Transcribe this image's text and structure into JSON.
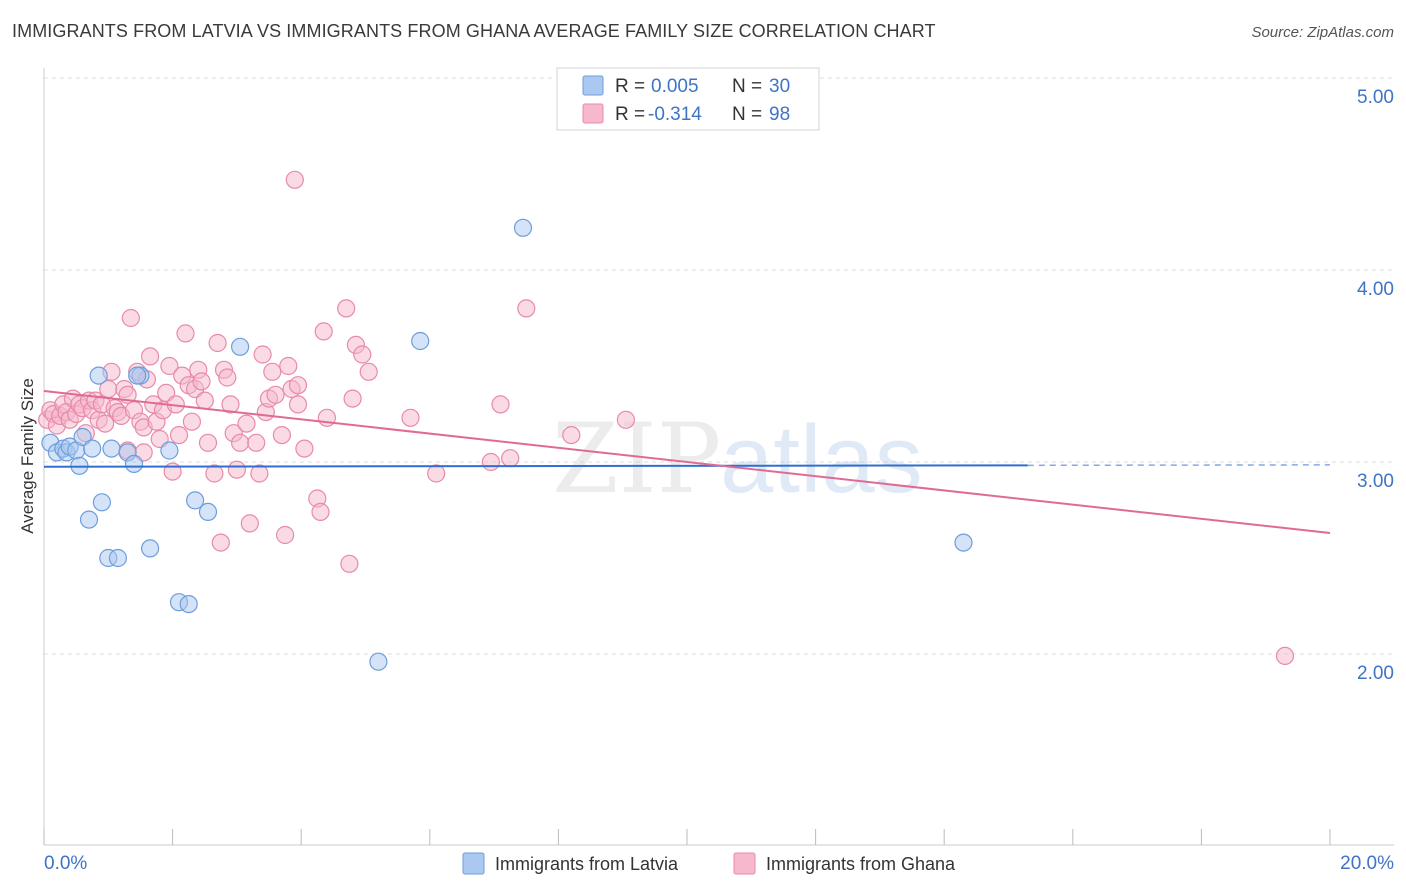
{
  "header": {
    "title": "IMMIGRANTS FROM LATVIA VS IMMIGRANTS FROM GHANA AVERAGE FAMILY SIZE CORRELATION CHART",
    "source": "Source: ZipAtlas.com"
  },
  "watermark": {
    "zip": "ZIP",
    "atlas": "atlas"
  },
  "colors": {
    "latvia_fill": "#aac8f0",
    "latvia_stroke": "#6d9edc",
    "latvia_line": "#2f6fd0",
    "ghana_fill": "#f6b8cc",
    "ghana_stroke": "#e88aa8",
    "ghana_line": "#e06a96",
    "tick_text": "#3f73c4",
    "grid": "#dddddd"
  },
  "legend_top": {
    "rows": [
      {
        "r_label": "R =",
        "r_value": "0.005",
        "n_label": "N =",
        "n_value": "30"
      },
      {
        "r_label": "R =",
        "r_value": "-0.314",
        "n_label": "N =",
        "n_value": "98"
      }
    ]
  },
  "chart_data": {
    "type": "scatter",
    "ylabel": "Average Family Size",
    "xlabel": "",
    "x_tick_labels": [
      "0.0%",
      "20.0%"
    ],
    "y_tick_labels": [
      "2.00",
      "3.00",
      "4.00",
      "5.00"
    ],
    "xlim": [
      0,
      20
    ],
    "ylim": [
      1.0,
      5.1
    ],
    "y_ticks": [
      2.0,
      3.0,
      4.0,
      5.0
    ],
    "grid": true,
    "legend_placement": "bottom",
    "series": [
      {
        "name": "Immigrants from Latvia",
        "r": 0.005,
        "n": 30,
        "trend": {
          "x_solid": [
            0,
            15.3
          ],
          "x_dashed": [
            15.3,
            20
          ],
          "y_start": 2.975,
          "y_end": 2.985
        },
        "points": [
          [
            0.1,
            3.1
          ],
          [
            0.2,
            3.05
          ],
          [
            0.3,
            3.07
          ],
          [
            0.35,
            3.05
          ],
          [
            0.4,
            3.08
          ],
          [
            0.5,
            3.06
          ],
          [
            0.55,
            2.98
          ],
          [
            0.6,
            3.13
          ],
          [
            0.7,
            2.7
          ],
          [
            0.75,
            3.07
          ],
          [
            0.85,
            3.45
          ],
          [
            0.9,
            2.79
          ],
          [
            1.0,
            2.5
          ],
          [
            1.05,
            3.07
          ],
          [
            1.15,
            2.5
          ],
          [
            1.3,
            3.05
          ],
          [
            1.4,
            2.99
          ],
          [
            1.5,
            3.45
          ],
          [
            1.65,
            2.55
          ],
          [
            1.95,
            3.06
          ],
          [
            2.1,
            2.27
          ],
          [
            2.25,
            2.26
          ],
          [
            2.35,
            2.8
          ],
          [
            2.55,
            2.74
          ],
          [
            3.05,
            3.6
          ],
          [
            5.2,
            1.96
          ],
          [
            5.85,
            3.63
          ],
          [
            7.45,
            4.22
          ],
          [
            14.3,
            2.58
          ],
          [
            1.45,
            3.45
          ]
        ]
      },
      {
        "name": "Immigrants from Ghana",
        "r": -0.314,
        "n": 98,
        "trend": {
          "x_solid": [
            0,
            20
          ],
          "y_start": 3.37,
          "y_end": 2.63
        },
        "points": [
          [
            0.05,
            3.22
          ],
          [
            0.1,
            3.27
          ],
          [
            0.15,
            3.25
          ],
          [
            0.2,
            3.19
          ],
          [
            0.25,
            3.24
          ],
          [
            0.3,
            3.3
          ],
          [
            0.35,
            3.26
          ],
          [
            0.4,
            3.22
          ],
          [
            0.45,
            3.33
          ],
          [
            0.5,
            3.25
          ],
          [
            0.55,
            3.3
          ],
          [
            0.6,
            3.28
          ],
          [
            0.65,
            3.15
          ],
          [
            0.7,
            3.32
          ],
          [
            0.75,
            3.27
          ],
          [
            0.8,
            3.32
          ],
          [
            0.85,
            3.22
          ],
          [
            0.9,
            3.3
          ],
          [
            0.95,
            3.2
          ],
          [
            1.0,
            3.38
          ],
          [
            1.05,
            3.47
          ],
          [
            1.1,
            3.28
          ],
          [
            1.15,
            3.26
          ],
          [
            1.2,
            3.24
          ],
          [
            1.25,
            3.38
          ],
          [
            1.3,
            3.35
          ],
          [
            1.3,
            3.06
          ],
          [
            1.35,
            3.75
          ],
          [
            1.4,
            3.27
          ],
          [
            1.45,
            3.47
          ],
          [
            1.5,
            3.21
          ],
          [
            1.55,
            3.18
          ],
          [
            1.6,
            3.43
          ],
          [
            1.65,
            3.55
          ],
          [
            1.7,
            3.3
          ],
          [
            1.75,
            3.21
          ],
          [
            1.8,
            3.12
          ],
          [
            1.85,
            3.27
          ],
          [
            1.9,
            3.36
          ],
          [
            1.95,
            3.5
          ],
          [
            2.0,
            2.95
          ],
          [
            2.05,
            3.3
          ],
          [
            2.1,
            3.14
          ],
          [
            2.15,
            3.45
          ],
          [
            2.2,
            3.67
          ],
          [
            2.25,
            3.4
          ],
          [
            2.3,
            3.21
          ],
          [
            2.35,
            3.38
          ],
          [
            2.4,
            3.48
          ],
          [
            2.45,
            3.42
          ],
          [
            2.5,
            3.32
          ],
          [
            2.55,
            3.1
          ],
          [
            2.65,
            2.94
          ],
          [
            2.7,
            3.62
          ],
          [
            2.75,
            2.58
          ],
          [
            2.8,
            3.48
          ],
          [
            2.85,
            3.44
          ],
          [
            2.9,
            3.3
          ],
          [
            2.95,
            3.15
          ],
          [
            3.0,
            2.96
          ],
          [
            3.05,
            3.1
          ],
          [
            3.15,
            3.2
          ],
          [
            3.2,
            2.68
          ],
          [
            3.3,
            3.1
          ],
          [
            3.35,
            2.94
          ],
          [
            3.4,
            3.56
          ],
          [
            3.45,
            3.26
          ],
          [
            3.5,
            3.33
          ],
          [
            3.55,
            3.47
          ],
          [
            3.6,
            3.35
          ],
          [
            3.7,
            3.14
          ],
          [
            3.75,
            2.62
          ],
          [
            3.8,
            3.5
          ],
          [
            3.85,
            3.38
          ],
          [
            3.9,
            4.47
          ],
          [
            3.95,
            3.3
          ],
          [
            3.95,
            3.4
          ],
          [
            4.05,
            3.07
          ],
          [
            4.25,
            2.81
          ],
          [
            4.3,
            2.74
          ],
          [
            4.35,
            3.68
          ],
          [
            4.4,
            3.23
          ],
          [
            4.7,
            3.8
          ],
          [
            4.75,
            2.47
          ],
          [
            4.8,
            3.33
          ],
          [
            4.85,
            3.61
          ],
          [
            4.95,
            3.56
          ],
          [
            5.05,
            3.47
          ],
          [
            5.7,
            3.23
          ],
          [
            6.1,
            2.94
          ],
          [
            6.95,
            3.0
          ],
          [
            7.1,
            3.3
          ],
          [
            7.25,
            3.02
          ],
          [
            7.5,
            3.8
          ],
          [
            8.2,
            3.14
          ],
          [
            9.05,
            3.22
          ],
          [
            19.3,
            1.99
          ],
          [
            1.55,
            3.05
          ]
        ]
      }
    ]
  }
}
